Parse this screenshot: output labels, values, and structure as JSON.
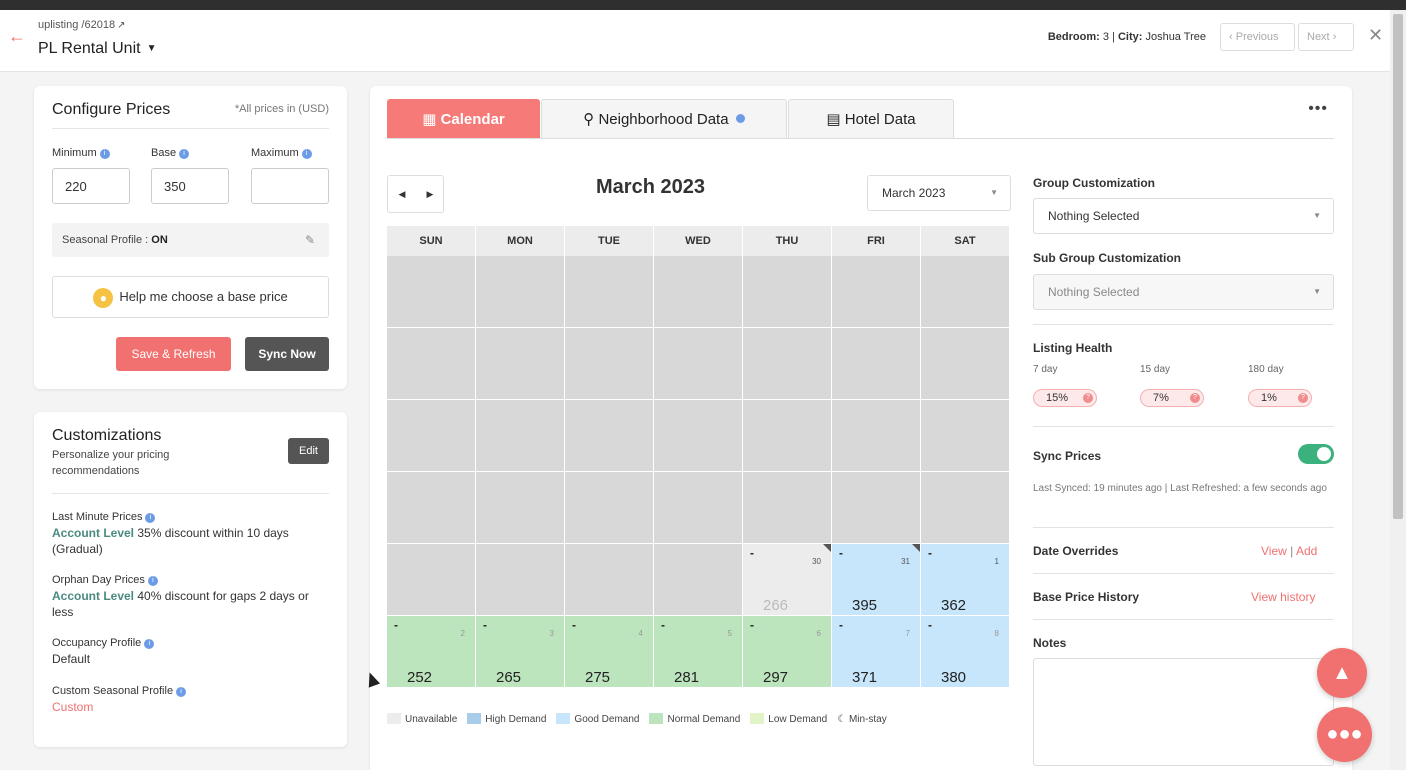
{
  "header": {
    "breadcrumb": "uplisting /62018",
    "unit_name": "PL Rental Unit",
    "bedroom_label": "Bedroom:",
    "bedroom_value": "3",
    "city_label": "City:",
    "city_value": "Joshua Tree",
    "prev_label": "Previous",
    "next_label": "Next"
  },
  "configure": {
    "title": "Configure Prices",
    "currency_note": "*All prices in (USD)",
    "minimum_label": "Minimum",
    "minimum_value": "220",
    "base_label": "Base",
    "base_value": "350",
    "maximum_label": "Maximum",
    "maximum_value": "",
    "seasonal_label": "Seasonal Profile :",
    "seasonal_value": "ON",
    "help_label": "Help me choose a base price",
    "save_label": "Save & Refresh",
    "sync_label": "Sync Now"
  },
  "customizations": {
    "title": "Customizations",
    "subtitle": "Personalize your pricing recommendations",
    "edit_label": "Edit",
    "last_minute_label": "Last Minute Prices",
    "last_minute_level": "Account Level",
    "last_minute_text": "35% discount within 10 days (Gradual)",
    "orphan_label": "Orphan Day Prices",
    "orphan_level": "Account Level",
    "orphan_text": "40% discount for gaps 2 days or less",
    "occupancy_label": "Occupancy Profile",
    "occupancy_value": "Default",
    "custom_seasonal_label": "Custom Seasonal Profile",
    "custom_seasonal_value": "Custom"
  },
  "tabs": {
    "calendar": "Calendar",
    "neighborhood": "Neighborhood Data",
    "hotel": "Hotel Data"
  },
  "calendar": {
    "title": "March 2023",
    "month_select": "March 2023",
    "weekdays": [
      "SUN",
      "MON",
      "TUE",
      "WED",
      "THU",
      "FRI",
      "SAT"
    ],
    "days": [
      {
        "state": "unav",
        "min": "-",
        "day": "30",
        "price": "266"
      },
      {
        "state": "good",
        "min": "-",
        "day": "31",
        "price": "395"
      },
      {
        "state": "good",
        "min": "-",
        "day": "1",
        "price": "362"
      },
      {
        "state": "normal",
        "min": "-",
        "day": "2",
        "price": "252"
      },
      {
        "state": "normal",
        "min": "-",
        "day": "3",
        "price": "265"
      },
      {
        "state": "normal",
        "min": "-",
        "day": "4",
        "price": "275"
      },
      {
        "state": "normal",
        "min": "-",
        "day": "5",
        "price": "281"
      },
      {
        "state": "normal",
        "min": "-",
        "day": "6",
        "price": "297"
      },
      {
        "state": "good",
        "min": "-",
        "day": "7",
        "price": "371"
      },
      {
        "state": "good",
        "min": "-",
        "day": "8",
        "price": "380"
      }
    ],
    "legend": [
      {
        "label": "Unavailable",
        "color": "#ececec"
      },
      {
        "label": "High Demand",
        "color": "#a9cde9"
      },
      {
        "label": "Good Demand",
        "color": "#c7e6fb"
      },
      {
        "label": "Normal Demand",
        "color": "#bce4bd"
      },
      {
        "label": "Low Demand",
        "color": "#e3f3c8"
      }
    ],
    "minstay_label": "Min-stay"
  },
  "side": {
    "group_label": "Group Customization",
    "group_value": "Nothing Selected",
    "subgroup_label": "Sub Group Customization",
    "subgroup_value": "Nothing Selected",
    "health_label": "Listing Health",
    "health": [
      {
        "period": "7 day",
        "value": "15%"
      },
      {
        "period": "15 day",
        "value": "7%"
      },
      {
        "period": "180 day",
        "value": "1%"
      }
    ],
    "sync_label": "Sync Prices",
    "sync_on": true,
    "synced_text": "Last Synced: 19 minutes ago | Last Refreshed: a few seconds ago",
    "overrides_label": "Date Overrides",
    "overrides_view": "View",
    "overrides_add": "Add",
    "history_label": "Base Price History",
    "history_link": "View history",
    "notes_label": "Notes"
  }
}
